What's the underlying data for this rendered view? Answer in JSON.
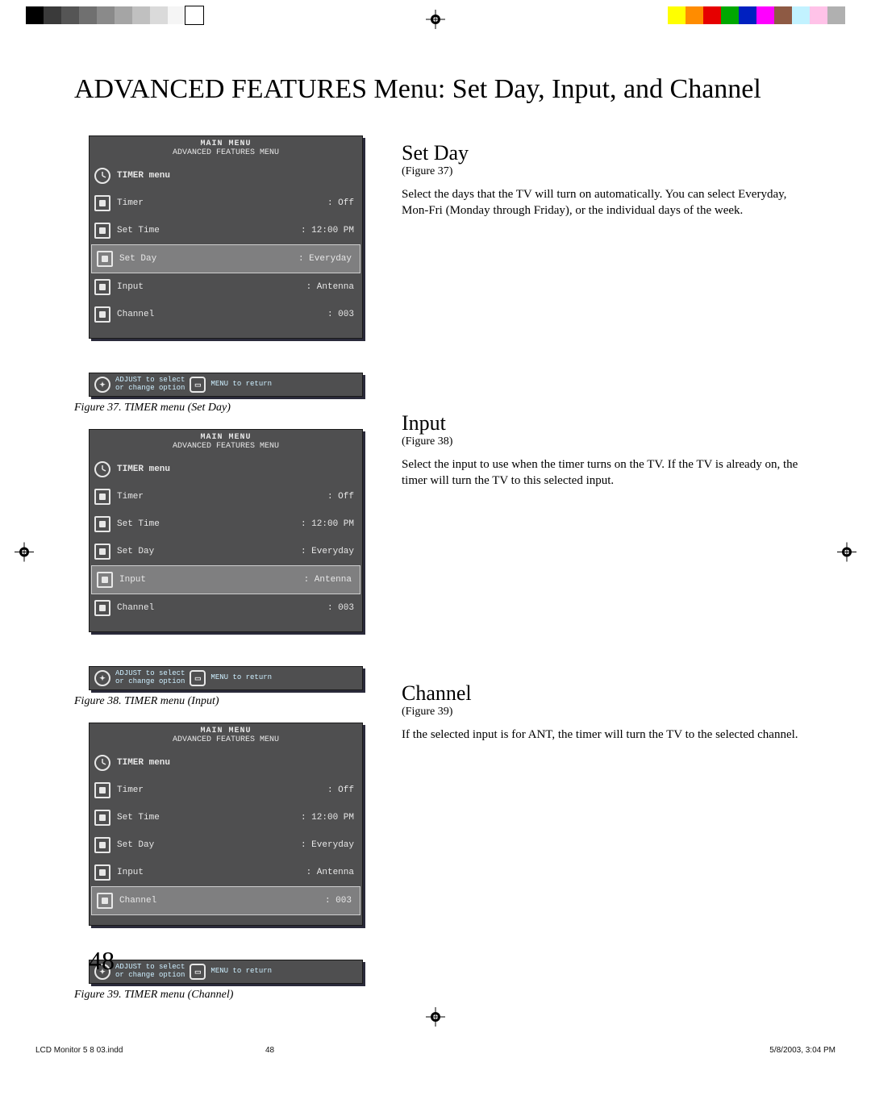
{
  "page_title": "ADVANCED FEATURES Menu: Set Day, Input, and Channel",
  "page_number": "48",
  "print": {
    "colorbar_left": [
      "#000000",
      "#3a3a3a",
      "#555555",
      "#707070",
      "#8a8a8a",
      "#a5a5a5",
      "#c0c0c0",
      "#dadada",
      "#f5f5f5",
      "#ffffff"
    ],
    "colorbar_right": [
      "#ffff00",
      "#ff8c00",
      "#e60000",
      "#00a800",
      "#0020c0",
      "#ff00ff",
      "#8e5a44",
      "#c2f2ff",
      "#ffc2e8",
      "#b0b0b0"
    ]
  },
  "osd_common": {
    "header": "MAIN MENU",
    "subheader": "ADVANCED FEATURES MENU",
    "menu_title": "TIMER menu",
    "rows": [
      {
        "label": "Timer",
        "value": "Off"
      },
      {
        "label": "Set Time",
        "value": "12:00 PM"
      },
      {
        "label": "Set Day",
        "value": "Everyday"
      },
      {
        "label": "Input",
        "value": "Antenna"
      },
      {
        "label": "Channel",
        "value": "003"
      }
    ],
    "foot_line1": "ADJUST to select",
    "foot_line2": "or change option",
    "foot_return": "MENU to return"
  },
  "figures": [
    {
      "caption": "Figure 37.  TIMER menu (Set Day)",
      "selected_index": 2
    },
    {
      "caption": "Figure 38.  TIMER menu (Input)",
      "selected_index": 3
    },
    {
      "caption": "Figure 39.  TIMER menu (Channel)",
      "selected_index": 4
    }
  ],
  "sections": [
    {
      "heading": "Set Day",
      "figref": "(Figure 37)",
      "body": "Select the days that the TV will turn on automatically.  You can select Everyday, Mon-Fri (Monday through Friday), or the individual days of the week."
    },
    {
      "heading": "Input",
      "figref": "(Figure 38)",
      "body": "Select the input to use when the timer turns on the TV.  If the TV is already on, the timer will turn the TV to this selected input."
    },
    {
      "heading": "Channel",
      "figref": "(Figure 39)",
      "body": "If the selected input is for ANT, the timer will turn the TV to the selected channel."
    }
  ],
  "footer": {
    "left": "LCD Monitor 5 8 03.indd",
    "mid": "48",
    "right": "5/8/2003, 3:04 PM"
  },
  "style": {
    "osd_bg": "#4f4f50",
    "osd_sel_bg": "#7f7f80",
    "osd_text": "#e7e7e7",
    "foot_text": "#cdefff"
  }
}
